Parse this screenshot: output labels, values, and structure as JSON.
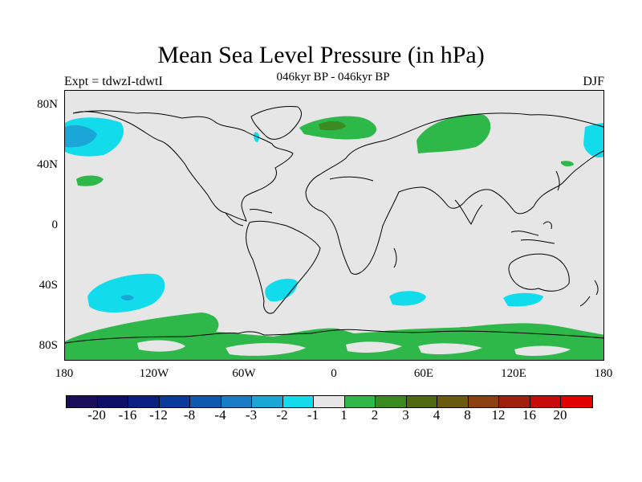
{
  "title": "Mean Sea Level Pressure (in hPa)",
  "subtitle": "046kyr BP - 046kyr BP",
  "left_label": "Expt = tdwzI-tdwtI",
  "right_label": "DJF",
  "map": {
    "projection": "cylindrical equidistant",
    "lon_labels": [
      "180",
      "120W",
      "60W",
      "0",
      "60E",
      "120E",
      "180"
    ],
    "lat_labels": [
      "80N",
      "40N",
      "0",
      "40S",
      "80S"
    ]
  },
  "colorbar": {
    "labels": [
      "-20",
      "-16",
      "-12",
      "-8",
      "-4",
      "-3",
      "-2",
      "-1",
      "1",
      "2",
      "3",
      "4",
      "8",
      "12",
      "16",
      "20"
    ],
    "colors": [
      "#1a0d5a",
      "#0d1066",
      "#0a2080",
      "#0a3a9c",
      "#1058b0",
      "#1a7cc4",
      "#1aa6d6",
      "#12dcec",
      "#e6e6e6",
      "#2eb84a",
      "#3a8a20",
      "#4d6a10",
      "#6a5a10",
      "#8a4010",
      "#a02010",
      "#c80a0a",
      "#e00000"
    ]
  }
}
